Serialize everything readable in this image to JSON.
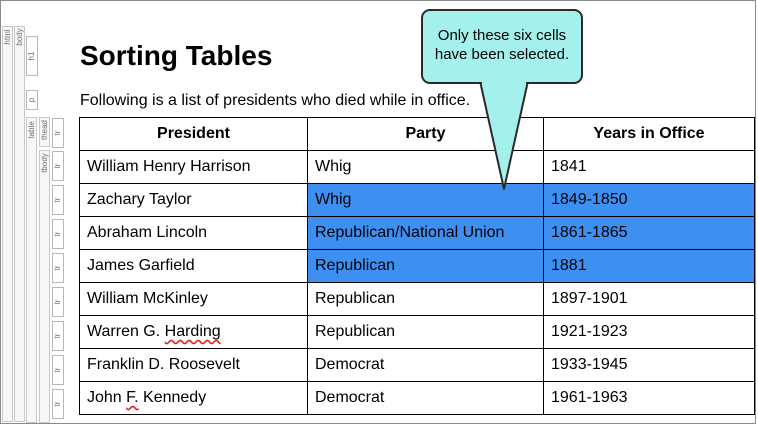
{
  "structure_tags": {
    "html": "html",
    "body": "body",
    "h1": "h1",
    "p": "p",
    "table": "table",
    "thead": "thead",
    "tbody": "tbody",
    "tr": "tr"
  },
  "heading": "Sorting Tables",
  "intro": "Following is a list of presidents who died while in office.",
  "callout": {
    "line1": "Only these six cells",
    "line2": "have been selected."
  },
  "table": {
    "headers": [
      "President",
      "Party",
      "Years in Office"
    ],
    "rows": [
      {
        "president": "William Henry Harrison",
        "party": "Whig",
        "years": "1841",
        "selected": false
      },
      {
        "president": "Zachary Taylor",
        "party": "Whig",
        "years": "1849-1850",
        "selected": true
      },
      {
        "president": "Abraham Lincoln",
        "party": "Republican/National Union",
        "years": "1861-1865",
        "selected": true
      },
      {
        "president": "James Garfield",
        "party": "Republican",
        "years": "1881",
        "selected": true
      },
      {
        "president": "William McKinley",
        "party": "Republican",
        "years": "1897-1901",
        "selected": false
      },
      {
        "president": "Warren G. Harding",
        "party": "Republican",
        "years": "1921-1923",
        "selected": false
      },
      {
        "president": "Franklin D. Roosevelt",
        "party": "Democrat",
        "years": "1933-1945",
        "selected": false
      },
      {
        "president": "John F. Kennedy",
        "party": "Democrat",
        "years": "1961-1963",
        "selected": false
      }
    ]
  },
  "colors": {
    "selection": "#3d8ff2",
    "callout_fill": "#a4f0ec"
  }
}
